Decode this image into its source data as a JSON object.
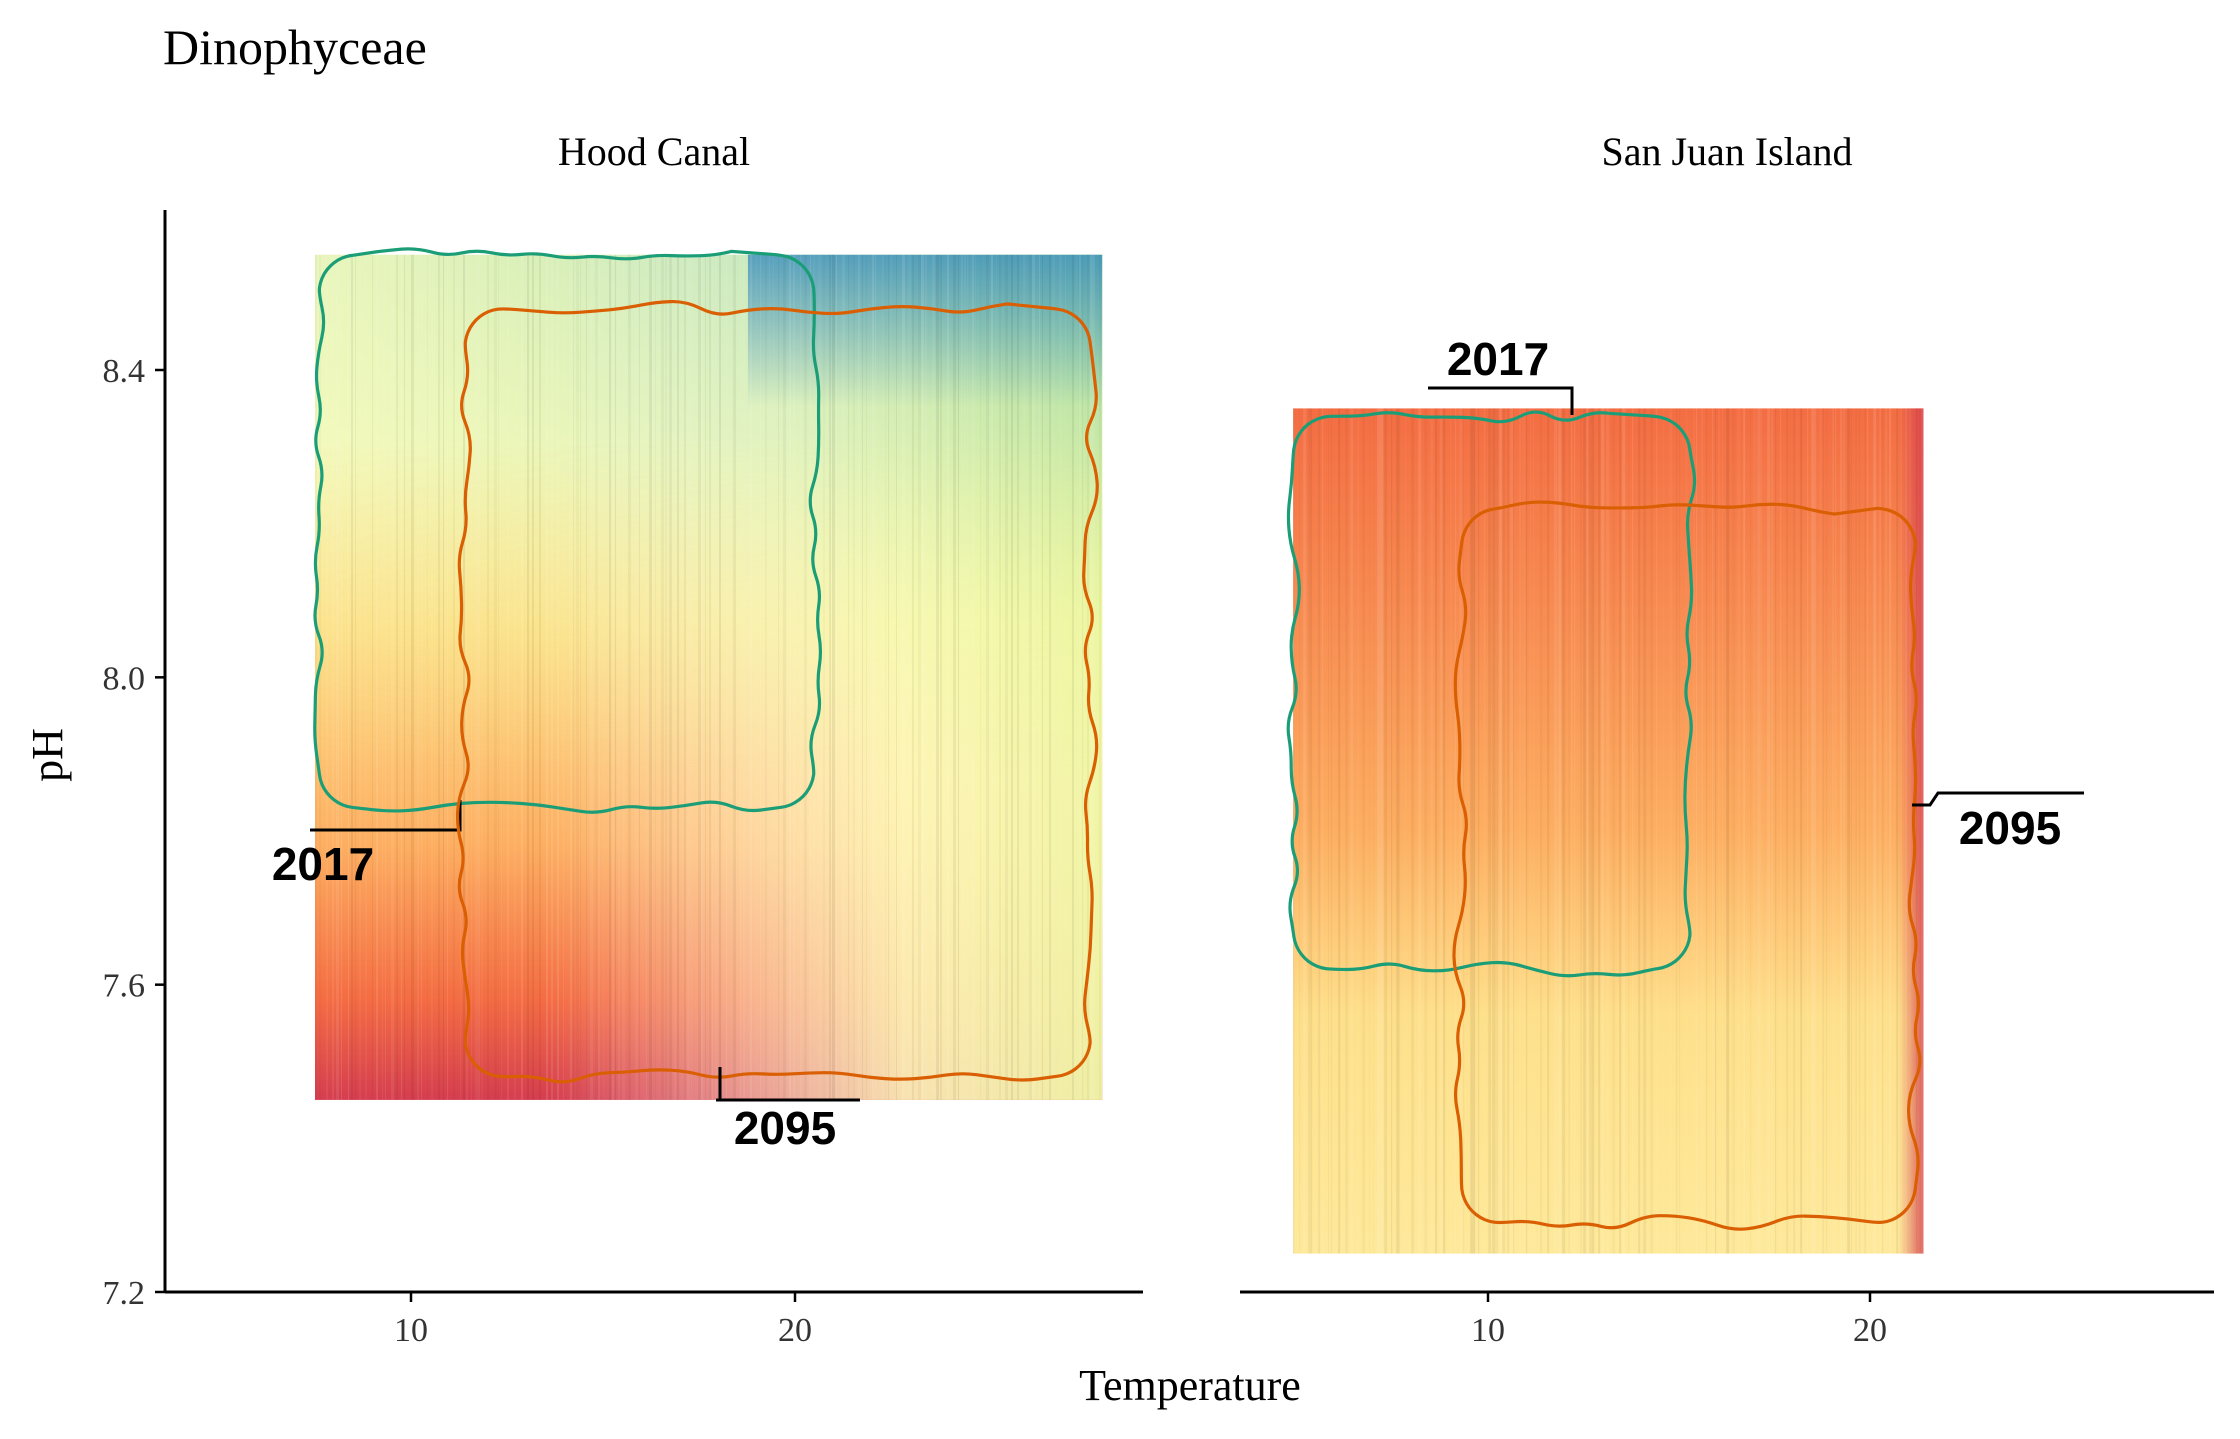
{
  "chart_data": {
    "type": "heatmap",
    "title": "Dinophyceae",
    "xlabel": "Temperature",
    "ylabel": "pH",
    "y_ticks": [
      7.2,
      7.6,
      8.0,
      8.4
    ],
    "y_tick_labels": [
      "7.2",
      "7.6",
      "8.0",
      "8.4"
    ],
    "ylim": [
      7.2,
      8.65
    ],
    "grid": false,
    "legend": "none",
    "colorscale": "Spectral (red = low, yellow = mid, blue = high)",
    "colors": {
      "contour_2017": "#1b9e77",
      "contour_2095": "#d95f02",
      "heat_low": "#d53e4f",
      "heat_mid_low": "#fdae61",
      "heat_mid": "#fee08b",
      "heat_mid_high": "#e6f598",
      "heat_high": "#abdda4",
      "heat_top": "#3288bd"
    },
    "panels": [
      {
        "name": "Hood Canal",
        "x_ticks": [
          10,
          20
        ],
        "x_tick_labels": [
          "10",
          "20"
        ],
        "xlim": [
          4,
          30
        ],
        "tile_extent": {
          "x": [
            7.5,
            28
          ],
          "y": [
            7.45,
            8.55
          ]
        },
        "contours": [
          {
            "label": "2017",
            "x_range": [
              7.6,
              20.5
            ],
            "y_range": [
              7.83,
              8.55
            ]
          },
          {
            "label": "2095",
            "x_range": [
              11.4,
              27.7
            ],
            "y_range": [
              7.48,
              8.48
            ]
          }
        ]
      },
      {
        "name": "San Juan Island",
        "x_ticks": [
          10,
          20
        ],
        "x_tick_labels": [
          "10",
          "20"
        ],
        "xlim": [
          3,
          29
        ],
        "tile_extent": {
          "x": [
            4.9,
            21.4
          ],
          "y": [
            7.25,
            8.35
          ]
        },
        "contours": [
          {
            "label": "2017",
            "x_range": [
              4.9,
              15.3
            ],
            "y_range": [
              7.62,
              8.34
            ]
          },
          {
            "label": "2095",
            "x_range": [
              9.3,
              21.2
            ],
            "y_range": [
              7.29,
              8.22
            ]
          }
        ]
      }
    ]
  }
}
